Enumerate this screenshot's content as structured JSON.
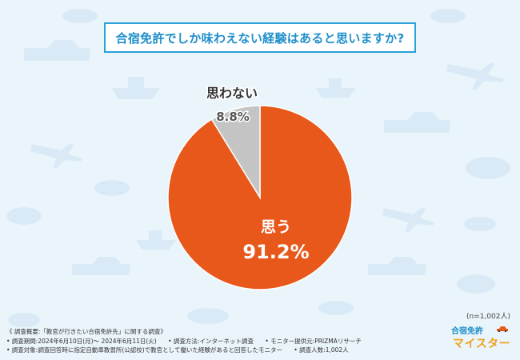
{
  "title": "合宿免許でしか味わえない経験はあると思いますか?",
  "sample_size": "(n=1,002人)",
  "chart_data": {
    "type": "pie",
    "title": "合宿免許でしか味わえない経験はあると思いますか?",
    "categories": [
      "思う",
      "思わない"
    ],
    "values": [
      91.2,
      8.8
    ],
    "unit": "%",
    "colors": [
      "#e8581b",
      "#c4c4c4"
    ],
    "value_labels": [
      "91.2%",
      "8.8%"
    ]
  },
  "footer": {
    "overview": "《 調査概要:「教官が行きたい合宿免許先」に関する調査》",
    "period": "• 調査期間:2024年6月10日(月)〜 2024年6月11日(火)",
    "method": "• 調査方法:インターネット調査",
    "provider": "• モニター提供元:PRIZMAリサーチ",
    "target": "• 調査対象:調査回答時に指定自動車教習所(公認校)で教官として働いた経験があると回答したモニター",
    "count": "• 調査人数:1,002人"
  },
  "logo": {
    "line1": "合宿免許",
    "line2": "マイスター"
  },
  "colors": {
    "background": "#eaf4fb",
    "title_border": "#2aa1d8",
    "title_text": "#1f8fca",
    "accent_orange": "#e8581b",
    "gray": "#c4c4c4"
  }
}
